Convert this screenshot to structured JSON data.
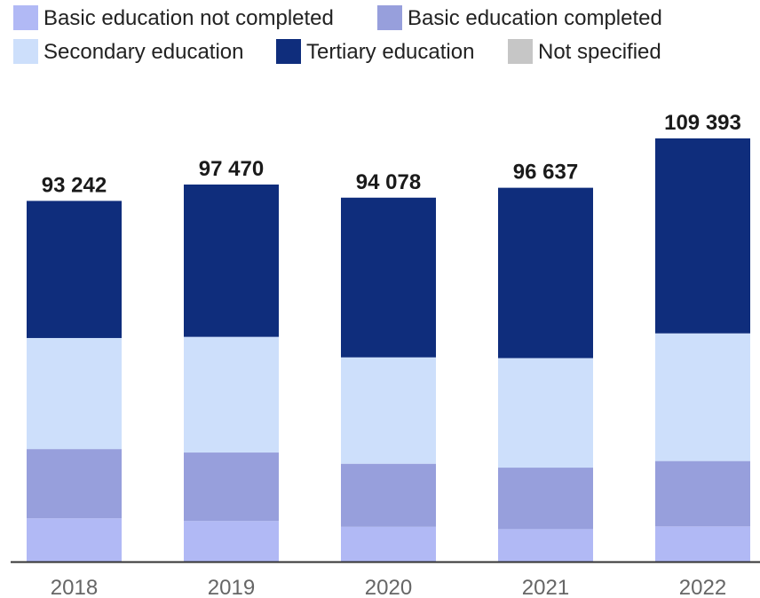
{
  "chart_data": {
    "type": "bar",
    "stacked": true,
    "categories": [
      "2018",
      "2019",
      "2020",
      "2021",
      "2022"
    ],
    "totals_labels": [
      "93 242",
      "97 470",
      "94 078",
      "96 637",
      "109 393"
    ],
    "series": [
      {
        "name": "Basic education not completed",
        "color": "#b1b9f5",
        "values": [
          11200,
          10500,
          9000,
          8400,
          9100
        ]
      },
      {
        "name": "Basic education completed",
        "color": "#979fdc",
        "values": [
          17900,
          17700,
          16300,
          15900,
          16900
        ]
      },
      {
        "name": "Secondary education",
        "color": "#cddffb",
        "values": [
          28700,
          29900,
          27500,
          28300,
          33000
        ]
      },
      {
        "name": "Tertiary education",
        "color": "#0f2d7c",
        "values": [
          35442,
          39370,
          41278,
          44037,
          50393
        ]
      },
      {
        "name": "Not specified",
        "color": "#c6c6c6",
        "values": [
          0,
          0,
          0,
          0,
          0
        ]
      }
    ],
    "legend_rows": [
      [
        "Basic education not completed",
        "Basic education completed"
      ],
      [
        "Secondary education",
        "Tertiary education",
        "Not specified"
      ]
    ],
    "legend_position": "top-left",
    "ylim": [
      0,
      109393
    ],
    "grid": false
  }
}
